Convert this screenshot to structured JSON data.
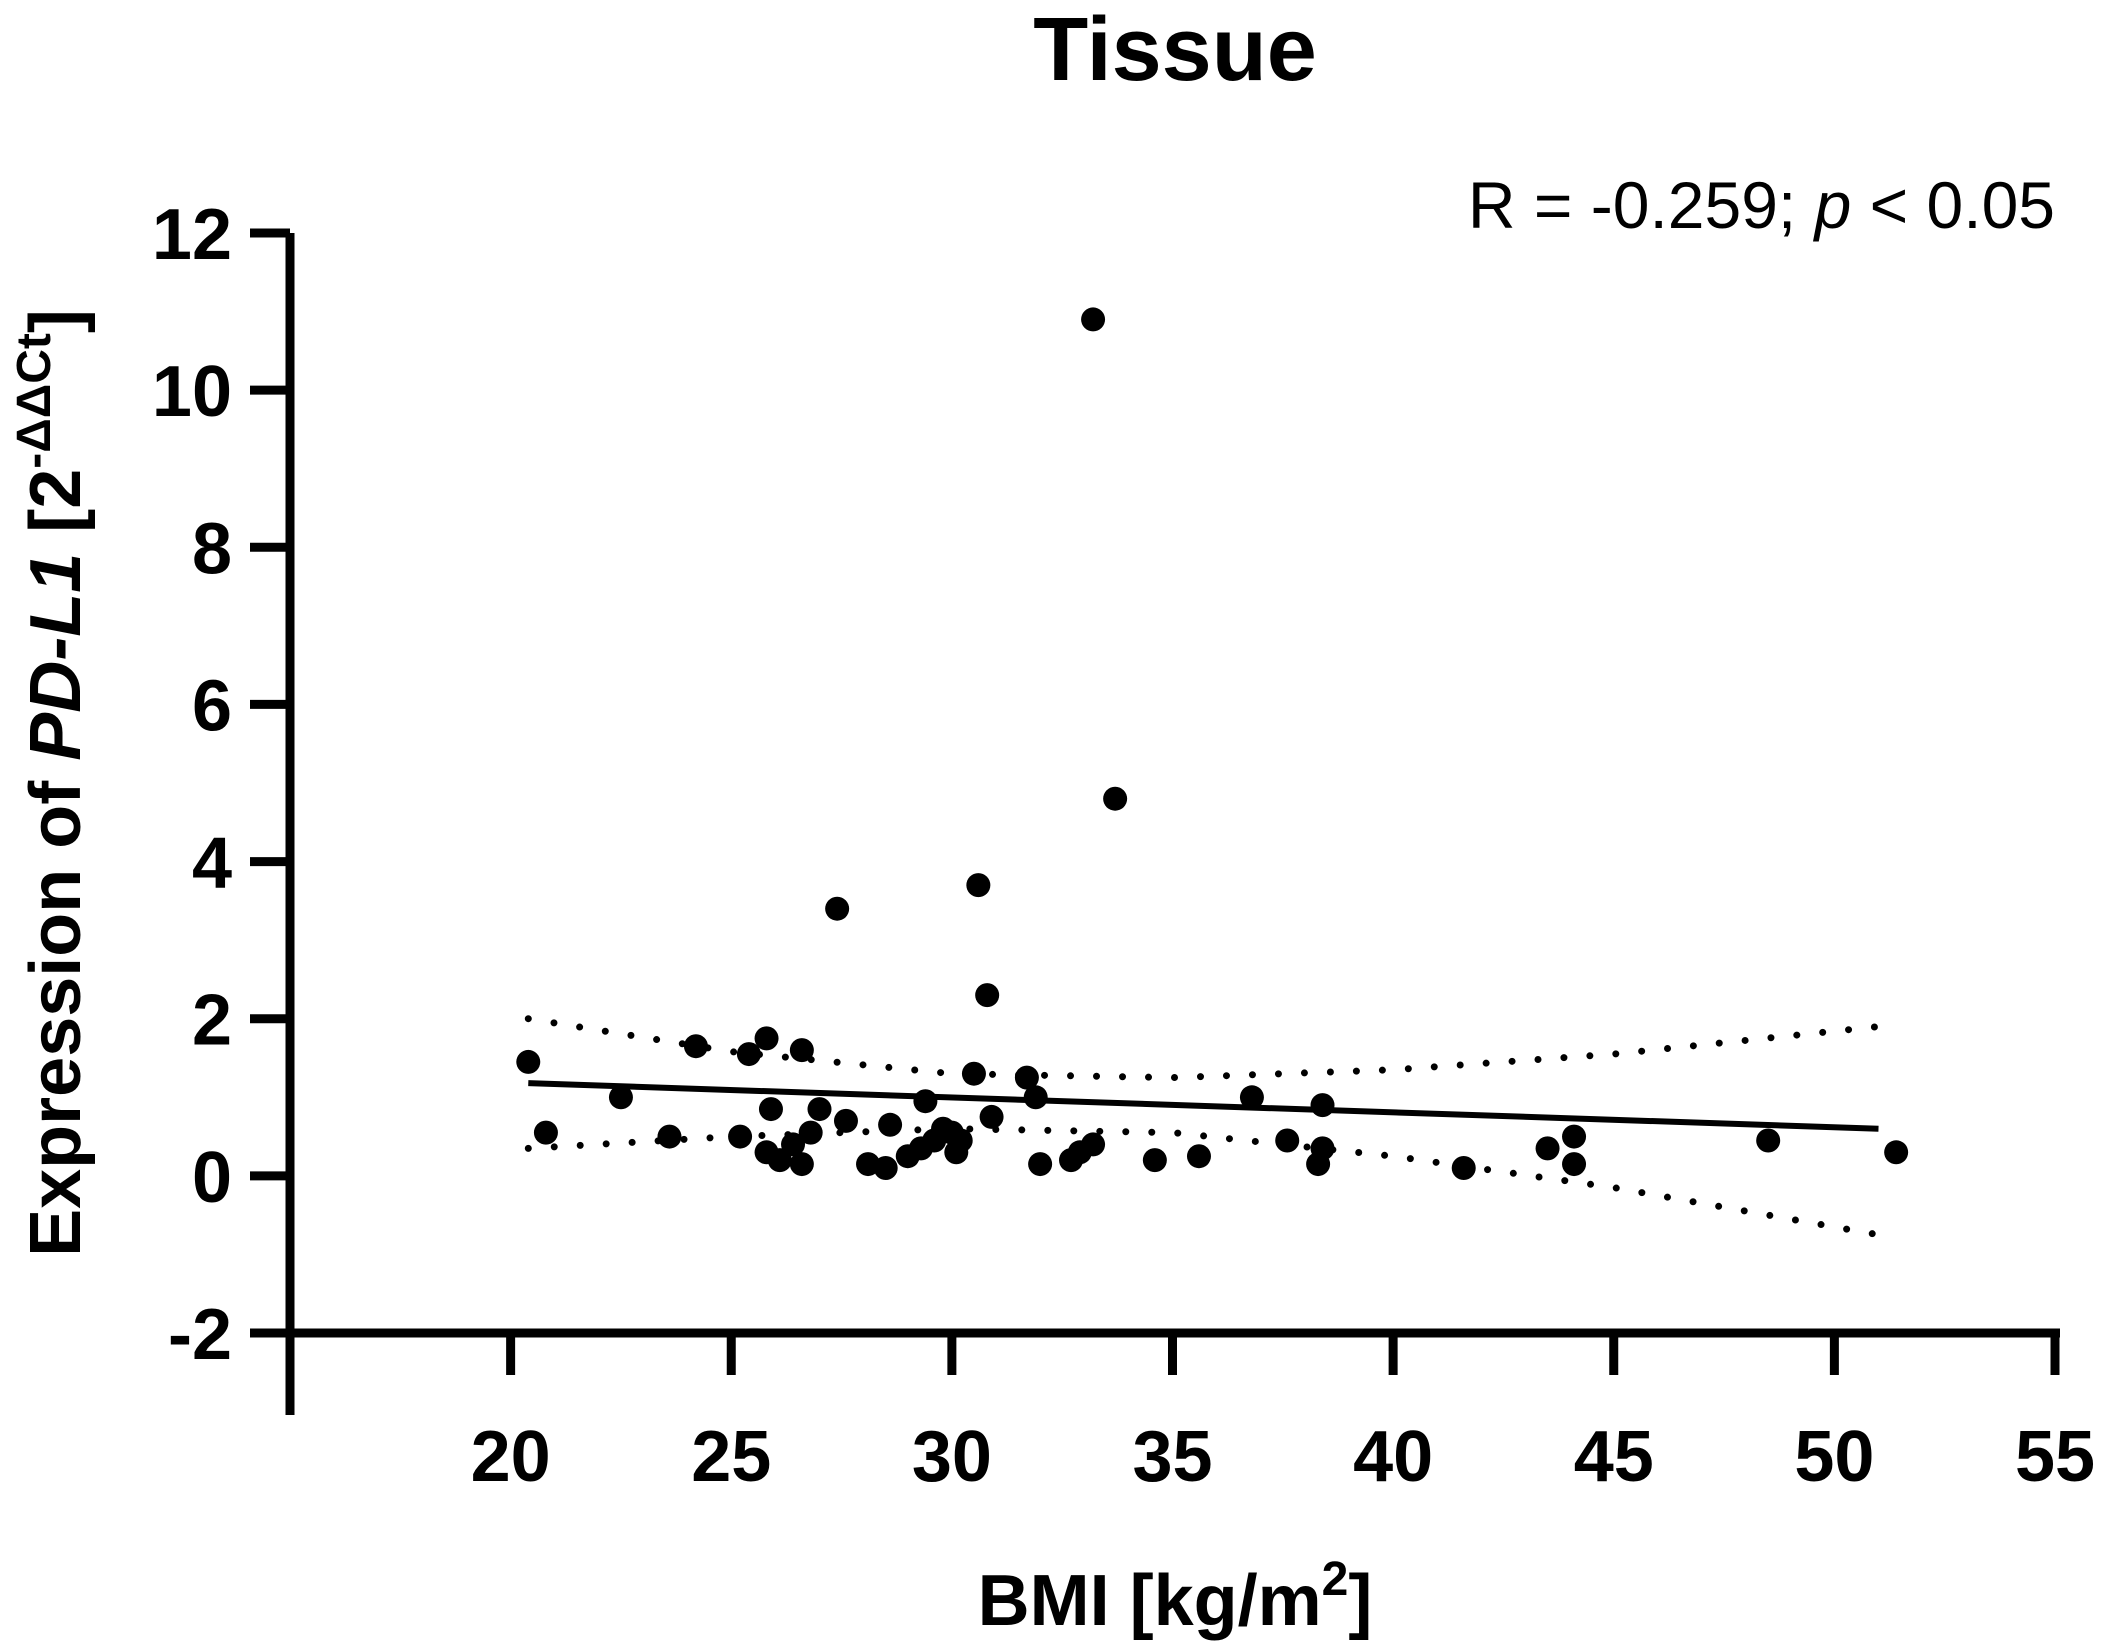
{
  "chart_data": {
    "type": "scatter",
    "title": "Tissue",
    "annotation": {
      "prefix": "R = -0.259; ",
      "p_symbol": "p",
      "suffix": " < 0.05"
    },
    "xlabel": {
      "main": "BMI [kg/m",
      "sup": "2",
      "end": "]"
    },
    "ylabel": {
      "prefix": "Expression of ",
      "gene": "PD-L1",
      "bracket_open": " [2",
      "sup": "-ΔΔCt",
      "bracket_close": "]"
    },
    "xlim": [
      15,
      55
    ],
    "ylim": [
      -2,
      12
    ],
    "xticks": [
      20,
      25,
      30,
      35,
      40,
      45,
      50,
      55
    ],
    "yticks": [
      -2,
      0,
      2,
      4,
      6,
      8,
      10,
      12
    ],
    "points": [
      {
        "x": 20.4,
        "y": 1.45
      },
      {
        "x": 20.8,
        "y": 0.55
      },
      {
        "x": 22.5,
        "y": 1.0
      },
      {
        "x": 23.6,
        "y": 0.5
      },
      {
        "x": 24.2,
        "y": 1.65
      },
      {
        "x": 25.2,
        "y": 0.5
      },
      {
        "x": 25.4,
        "y": 1.55
      },
      {
        "x": 25.8,
        "y": 1.75
      },
      {
        "x": 25.8,
        "y": 0.3
      },
      {
        "x": 25.9,
        "y": 0.85
      },
      {
        "x": 26.1,
        "y": 0.2
      },
      {
        "x": 26.4,
        "y": 0.4
      },
      {
        "x": 26.6,
        "y": 0.15
      },
      {
        "x": 26.6,
        "y": 1.6
      },
      {
        "x": 26.8,
        "y": 0.55
      },
      {
        "x": 27.0,
        "y": 0.85
      },
      {
        "x": 27.4,
        "y": 3.4
      },
      {
        "x": 27.6,
        "y": 0.7
      },
      {
        "x": 28.1,
        "y": 0.15
      },
      {
        "x": 28.5,
        "y": 0.1
      },
      {
        "x": 28.6,
        "y": 0.65
      },
      {
        "x": 29.0,
        "y": 0.25
      },
      {
        "x": 29.3,
        "y": 0.35
      },
      {
        "x": 29.4,
        "y": 0.95
      },
      {
        "x": 29.6,
        "y": 0.45
      },
      {
        "x": 29.8,
        "y": 0.6
      },
      {
        "x": 30.0,
        "y": 0.55
      },
      {
        "x": 30.1,
        "y": 0.3
      },
      {
        "x": 30.2,
        "y": 0.45
      },
      {
        "x": 30.5,
        "y": 1.3
      },
      {
        "x": 30.6,
        "y": 3.7
      },
      {
        "x": 30.8,
        "y": 2.3
      },
      {
        "x": 30.9,
        "y": 0.75
      },
      {
        "x": 31.7,
        "y": 1.25
      },
      {
        "x": 31.9,
        "y": 1.0
      },
      {
        "x": 32.0,
        "y": 0.15
      },
      {
        "x": 32.7,
        "y": 0.2
      },
      {
        "x": 32.9,
        "y": 0.3
      },
      {
        "x": 33.2,
        "y": 0.4
      },
      {
        "x": 33.2,
        "y": 10.9
      },
      {
        "x": 33.7,
        "y": 4.8
      },
      {
        "x": 34.6,
        "y": 0.2
      },
      {
        "x": 35.6,
        "y": 0.25
      },
      {
        "x": 36.8,
        "y": 1.0
      },
      {
        "x": 37.6,
        "y": 0.45
      },
      {
        "x": 38.3,
        "y": 0.15
      },
      {
        "x": 38.4,
        "y": 0.35
      },
      {
        "x": 38.4,
        "y": 0.9
      },
      {
        "x": 41.6,
        "y": 0.1
      },
      {
        "x": 43.5,
        "y": 0.35
      },
      {
        "x": 44.1,
        "y": 0.5
      },
      {
        "x": 44.1,
        "y": 0.15
      },
      {
        "x": 48.5,
        "y": 0.45
      },
      {
        "x": 51.4,
        "y": 0.3
      }
    ],
    "regression_line": {
      "x": [
        20.4,
        51.0
      ],
      "y": [
        1.18,
        0.6
      ]
    },
    "ci_upper": {
      "x": [
        20.4,
        25,
        30,
        35,
        40,
        45,
        51.0
      ],
      "y": [
        2.0,
        1.58,
        1.3,
        1.25,
        1.35,
        1.55,
        1.9
      ]
    },
    "ci_lower": {
      "x": [
        20.4,
        25,
        30,
        35,
        40,
        45,
        51.0
      ],
      "y": [
        0.35,
        0.5,
        0.6,
        0.55,
        0.25,
        -0.15,
        -0.75
      ]
    }
  }
}
